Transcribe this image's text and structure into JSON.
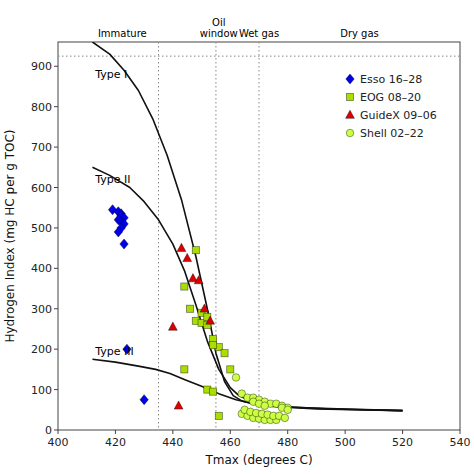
{
  "chart_data": {
    "type": "scatter",
    "xlabel": "Tmax (degrees C)",
    "ylabel": "Hydrogen Index (mg HC per g TOC)",
    "xlim": [
      400,
      540
    ],
    "ylim": [
      0,
      960
    ],
    "xticks": [
      400,
      420,
      440,
      460,
      480,
      500,
      520,
      540
    ],
    "yticks": [
      0,
      100,
      200,
      300,
      400,
      500,
      600,
      700,
      800,
      900
    ],
    "grid": false,
    "legend": "upper right",
    "series": [
      {
        "type": "line",
        "line_style": "solid",
        "color": "#111111",
        "x": [
          412,
          418,
          423,
          428,
          433,
          438,
          443,
          448,
          452,
          455,
          458,
          461,
          464,
          468,
          475,
          490,
          520
        ],
        "values": [
          960,
          930,
          890,
          840,
          770,
          680,
          570,
          430,
          300,
          190,
          120,
          85,
          72,
          65,
          58,
          52,
          48
        ]
      },
      {
        "type": "line",
        "line_style": "solid",
        "color": "#111111",
        "x": [
          412,
          418,
          425,
          430,
          435,
          440,
          444,
          448,
          452,
          456,
          460,
          463,
          466,
          470,
          478,
          495,
          520
        ],
        "values": [
          650,
          630,
          600,
          565,
          520,
          460,
          395,
          310,
          220,
          150,
          105,
          85,
          75,
          65,
          58,
          52,
          48
        ]
      },
      {
        "type": "line",
        "line_style": "solid",
        "color": "#111111",
        "x": [
          412,
          420,
          428,
          434,
          439,
          444,
          450,
          456,
          462,
          468,
          478,
          500,
          520
        ],
        "values": [
          175,
          168,
          158,
          150,
          140,
          125,
          108,
          90,
          75,
          65,
          57,
          52,
          48
        ]
      },
      {
        "name": "Esso 16–28",
        "type": "scatter",
        "marker": "diamond",
        "color": "#0000ee",
        "x": [
          419,
          421,
          422,
          422,
          423,
          421,
          422,
          423,
          422,
          421,
          423,
          424,
          430
        ],
        "values": [
          545,
          540,
          535,
          530,
          525,
          520,
          515,
          510,
          500,
          490,
          460,
          200,
          75
        ]
      },
      {
        "name": "EOG 08–20",
        "type": "scatter",
        "marker": "square",
        "color": "#aadd00",
        "x": [
          444,
          446,
          448,
          450,
          452,
          454,
          456,
          458,
          460,
          448,
          450,
          452,
          454,
          444,
          452,
          454,
          456
        ],
        "values": [
          355,
          300,
          270,
          265,
          260,
          225,
          205,
          190,
          150,
          445,
          290,
          280,
          210,
          150,
          100,
          95,
          35
        ]
      },
      {
        "name": "GuideX 09–06",
        "type": "scatter",
        "marker": "triangle",
        "color": "#dd0000",
        "x": [
          443,
          445,
          447,
          449,
          451,
          453,
          440,
          442
        ],
        "values": [
          450,
          425,
          375,
          370,
          300,
          270,
          255,
          60
        ]
      },
      {
        "name": "Shell 02–22",
        "type": "scatter",
        "marker": "circle",
        "color": "#ccff44",
        "x": [
          462,
          464,
          466,
          468,
          470,
          472,
          474,
          476,
          478,
          480,
          464,
          466,
          468,
          470,
          472,
          474,
          476,
          478,
          480,
          465,
          467,
          469,
          471,
          473,
          475,
          477,
          479,
          468,
          470,
          472
        ],
        "values": [
          130,
          90,
          80,
          80,
          75,
          70,
          65,
          65,
          60,
          55,
          40,
          35,
          30,
          28,
          25,
          25,
          25,
          55,
          50,
          50,
          45,
          42,
          40,
          38,
          35,
          35,
          30,
          70,
          65,
          60
        ]
      }
    ],
    "reference_lines": {
      "x": [
        435,
        455,
        470
      ],
      "y": [
        925
      ]
    },
    "annotations": [
      {
        "text": "Type I",
        "x": 413,
        "y": 870
      },
      {
        "text": "Type II",
        "x": 413,
        "y": 610
      },
      {
        "text": "Type III",
        "x": 413,
        "y": 185
      }
    ],
    "zone_labels": [
      "Immature",
      "Oil\nwindow",
      "Wet gas",
      "Dry gas"
    ]
  }
}
